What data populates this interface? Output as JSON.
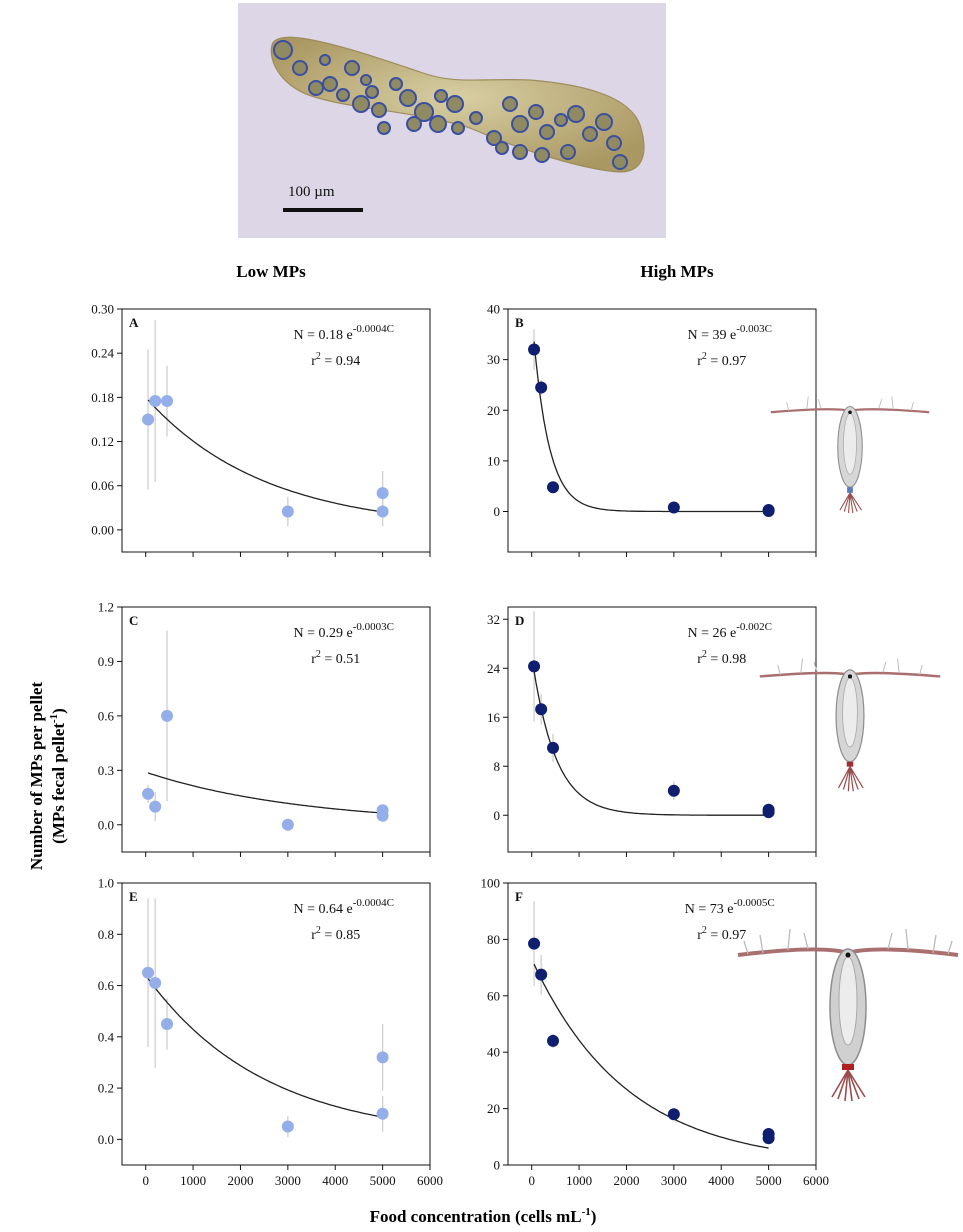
{
  "photo": {
    "scale_label": "100 µm",
    "colors": {
      "background": "#dcd6e6",
      "pellet": "#b7a46a",
      "particle_ring": "#3a4fa0"
    }
  },
  "column_headers": {
    "left": "Low MPs",
    "right": "High MPs"
  },
  "axis_labels": {
    "y_line1": "Number of MPs per pellet",
    "y_line2_prefix": "(MPs fecal pellet",
    "y_line2_sup": "-1",
    "y_line2_suffix": ")",
    "x_prefix": "Food concentration (cells mL",
    "x_sup": "-1",
    "x_suffix": ")"
  },
  "colors": {
    "low_marker": "#94aeea",
    "high_marker": "#0f1e6e",
    "fit_line": "#222222",
    "error_bar": "#cfcfcf"
  },
  "icons": {
    "copepod_small": "copepod-icon",
    "copepod_medium": "copepod-icon",
    "copepod_large": "copepod-icon"
  },
  "chart_data": [
    {
      "type": "scatter",
      "panel": "A",
      "marker": "light",
      "x": [
        50,
        200,
        450,
        3000,
        5000,
        5000
      ],
      "y": [
        0.15,
        0.175,
        0.175,
        0.025,
        0.05,
        0.025
      ],
      "yerr": [
        0.095,
        0.11,
        0.048,
        0.02,
        0.03,
        0.02
      ],
      "fit": {
        "a": 0.18,
        "k": 0.0004,
        "x": [
          50,
          5000
        ]
      },
      "eq_prefix": "N = 0.18 e",
      "eq_exp": "-0.0004C",
      "r2_prefix": "r",
      "r2_sup": "2",
      "r2_value": " = 0.94",
      "xlim": [
        -500,
        6000
      ],
      "ylim": [
        -0.03,
        0.3
      ],
      "yticks": [
        "0.00",
        "0.06",
        "0.12",
        "0.18",
        "0.24",
        "0.30"
      ]
    },
    {
      "type": "scatter",
      "panel": "B",
      "marker": "dark",
      "x": [
        50,
        200,
        450,
        3000,
        5000,
        5000
      ],
      "y": [
        32,
        24.5,
        4.8,
        0.8,
        0.3,
        0.1
      ],
      "yerr": [
        4,
        1.5,
        0.8,
        0.4,
        0.3,
        0.2
      ],
      "fit": {
        "a": 39,
        "k": 0.003,
        "x": [
          50,
          5000
        ]
      },
      "eq_prefix": "N = 39 e",
      "eq_exp": "-0.003C",
      "r2_prefix": "r",
      "r2_sup": "2",
      "r2_value": " = 0.97",
      "xlim": [
        -500,
        6000
      ],
      "ylim": [
        -8,
        40
      ],
      "yticks": [
        "0",
        "10",
        "20",
        "30",
        "40"
      ]
    },
    {
      "type": "scatter",
      "panel": "C",
      "marker": "light",
      "x": [
        50,
        200,
        450,
        3000,
        5000,
        5000
      ],
      "y": [
        0.17,
        0.1,
        0.6,
        0.0,
        0.08,
        0.05
      ],
      "yerr": [
        0.05,
        0.08,
        0.47,
        0.0,
        0.02,
        0.02
      ],
      "fit": {
        "a": 0.29,
        "k": 0.0003,
        "x": [
          50,
          5000
        ]
      },
      "eq_prefix": "N = 0.29 e",
      "eq_exp": "-0.0003C",
      "r2_prefix": "r",
      "r2_sup": "2",
      "r2_value": " = 0.51",
      "xlim": [
        -500,
        6000
      ],
      "ylim": [
        -0.15,
        1.2
      ],
      "yticks": [
        "0.0",
        "0.3",
        "0.6",
        "0.9",
        "1.2"
      ]
    },
    {
      "type": "scatter",
      "panel": "D",
      "marker": "dark",
      "x": [
        50,
        200,
        450,
        3000,
        5000,
        5000
      ],
      "y": [
        24.3,
        17.3,
        11.0,
        4.0,
        0.9,
        0.5
      ],
      "yerr": [
        9,
        2.5,
        2.3,
        1.5,
        0.5,
        0.4
      ],
      "fit": {
        "a": 26,
        "k": 0.002,
        "x": [
          50,
          5000
        ]
      },
      "eq_prefix": "N = 26 e",
      "eq_exp": "-0.002C",
      "r2_prefix": "r",
      "r2_sup": "2",
      "r2_value": " = 0.98",
      "xlim": [
        -500,
        6000
      ],
      "ylim": [
        -6,
        34
      ],
      "yticks": [
        "0",
        "8",
        "16",
        "24",
        "32"
      ]
    },
    {
      "type": "scatter",
      "panel": "E",
      "marker": "light",
      "x": [
        50,
        200,
        450,
        3000,
        5000,
        5000
      ],
      "y": [
        0.65,
        0.61,
        0.45,
        0.05,
        0.32,
        0.1
      ],
      "yerr": [
        0.29,
        0.33,
        0.1,
        0.04,
        0.13,
        0.07
      ],
      "fit": {
        "a": 0.64,
        "k": 0.0004,
        "x": [
          50,
          5000
        ]
      },
      "eq_prefix": "N = 0.64 e",
      "eq_exp": "-0.0004C",
      "r2_prefix": "r",
      "r2_sup": "2",
      "r2_value": " = 0.85",
      "xlim": [
        -500,
        6000
      ],
      "ylim": [
        -0.1,
        1.0
      ],
      "yticks": [
        "0.0",
        "0.2",
        "0.4",
        "0.6",
        "0.8",
        "1.0"
      ]
    },
    {
      "type": "scatter",
      "panel": "F",
      "marker": "dark",
      "x": [
        50,
        200,
        450,
        3000,
        5000,
        5000
      ],
      "y": [
        78.5,
        67.5,
        44.0,
        18.0,
        11.0,
        9.5
      ],
      "yerr": [
        15,
        7,
        2.5,
        1.5,
        1.2,
        1.2
      ],
      "fit": {
        "a": 73,
        "k": 0.0005,
        "x": [
          50,
          5000
        ]
      },
      "eq_prefix": "N = 73 e",
      "eq_exp": "-0.0005C",
      "r2_prefix": "r",
      "r2_sup": "2",
      "r2_value": " = 0.97",
      "xlim": [
        -500,
        6000
      ],
      "ylim": [
        0,
        100
      ],
      "yticks": [
        "0",
        "20",
        "40",
        "60",
        "80",
        "100"
      ]
    }
  ],
  "x_ticks": [
    "0",
    "1000",
    "2000",
    "3000",
    "4000",
    "5000",
    "6000"
  ]
}
